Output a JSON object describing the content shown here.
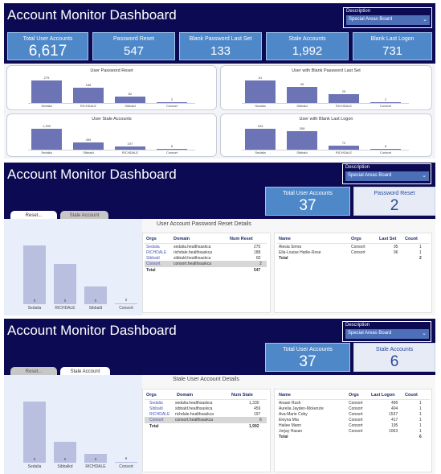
{
  "app_title": "Account Monitor Dashboard",
  "description_filter": {
    "label": "Description",
    "selected": "Special Areas Board",
    "chevron": "chevron-down-icon"
  },
  "overview": {
    "kpis": [
      {
        "label": "Total User Accounts",
        "value": "6,617"
      },
      {
        "label": "Password Reset",
        "value": "547"
      },
      {
        "label": "Blank Password Last Set",
        "value": "133"
      },
      {
        "label": "Stale Accounts",
        "value": "1,992"
      },
      {
        "label": "Blank Last Logon",
        "value": "731"
      }
    ],
    "charts": [
      {
        "title": "User Password Reset",
        "categories": [
          "Sedalia",
          "RICHDALE",
          "Sibbald",
          "Consort"
        ],
        "labels": [
          "275",
          "188",
          "82",
          "2"
        ],
        "values": [
          275,
          188,
          82,
          2
        ],
        "max": 300
      },
      {
        "title": "User with Blank Password Last Set",
        "categories": [
          "Sedalia",
          "Sibbald",
          "RICHDALE",
          "Consort"
        ],
        "labels": [
          "61",
          "45",
          "25",
          "2"
        ],
        "values": [
          61,
          45,
          25,
          2
        ],
        "max": 66
      },
      {
        "title": "User Stale Accounts",
        "categories": [
          "Sedalia",
          "Sibbald",
          "RICHDALE",
          "Consort"
        ],
        "labels": [
          "1,330",
          "459",
          "197",
          "6"
        ],
        "values": [
          1330,
          459,
          197,
          6
        ],
        "max": 1450
      },
      {
        "title": "User with Blank Last Logon",
        "categories": [
          "Sedalia",
          "Sibbald",
          "RICHDALE",
          "Consort"
        ],
        "labels": [
          "343",
          "308",
          "72",
          "8"
        ],
        "values": [
          343,
          308,
          72,
          8
        ],
        "max": 370
      }
    ]
  },
  "reset_view": {
    "kpi_total": {
      "label": "Total User Accounts",
      "value": "37"
    },
    "kpi_second": {
      "label": "Password Reset",
      "value": "2"
    },
    "tabs": [
      "Reset...",
      "Stale Account"
    ],
    "details_title": "User Account Password Reset Details",
    "bars": {
      "categories": [
        "Sedalia",
        "RICHDALE",
        "Sibbald",
        "Consort"
      ],
      "labels": [
        "0",
        "0",
        "0",
        "2"
      ],
      "values": [
        275,
        188,
        82,
        2
      ],
      "max": 300
    },
    "org_table": {
      "headers": [
        "Orgs",
        "Domain",
        "Num Reset"
      ],
      "rows": [
        [
          "Sedalia",
          "sedalia.healthsaskca",
          "275"
        ],
        [
          "RICHDALE",
          "richdale.healthsaskca",
          "188"
        ],
        [
          "Sibbald",
          "sibbald.healthsaskca",
          "82"
        ],
        [
          "Consort",
          "consort.healthsaskca",
          "2"
        ]
      ],
      "total_label": "Total",
      "total_value": "547"
    },
    "user_table": {
      "headers": [
        "Name",
        "Orgs",
        "Last Set",
        "Count"
      ],
      "rows": [
        [
          "Alesia Simra",
          "Consort",
          "95",
          "1"
        ],
        [
          "Ella-Louise Harlie-Rose",
          "Consort",
          "96",
          "1"
        ]
      ],
      "total_label": "Total",
      "total_value": "2"
    }
  },
  "stale_view": {
    "kpi_total": {
      "label": "Total User Accounts",
      "value": "37"
    },
    "kpi_second": {
      "label": "Stale Accounts",
      "value": "6"
    },
    "tabs": [
      "Reset...",
      "Stale Account"
    ],
    "details_title": "Stale User Account Details",
    "bars": {
      "categories": [
        "Sedalia",
        "Sibbalkd",
        "RICHDALE",
        "Consort"
      ],
      "labels": [
        "0",
        "0",
        "0",
        "6"
      ],
      "values": [
        1330,
        459,
        197,
        6
      ],
      "max": 1450
    },
    "org_table": {
      "headers": [
        "Orgs",
        "Domain",
        "Num Stale"
      ],
      "rows": [
        [
          "Sedalia",
          "sedalia.healthsaskca",
          "1,330"
        ],
        [
          "Sibbald",
          "sibbald.healthsaskca",
          "459"
        ],
        [
          "RICHDALE",
          "richdale.healthsaskca",
          "197"
        ],
        [
          "Consort",
          "consort.healthsaskca",
          "6"
        ]
      ],
      "total_label": "Total",
      "total_value": "1,992"
    },
    "user_table": {
      "headers": [
        "Name",
        "Orgs",
        "Last Logon",
        "Count"
      ],
      "rows": [
        [
          "Anaan Rush",
          "Consort",
          "496",
          "1"
        ],
        [
          "Aurelia Jayden-Mckenzie",
          "Consort",
          "404",
          "1"
        ],
        [
          "Ava-Marie Coby",
          "Consort",
          "1537",
          "1"
        ],
        [
          "Eleyna Mia",
          "Consort",
          "417",
          "1"
        ],
        [
          "Hailee Mann",
          "Consort",
          "195",
          "1"
        ],
        [
          "Jorjay Hasan",
          "Consort",
          "1063",
          "1"
        ]
      ],
      "total_label": "Total",
      "total_value": "6"
    }
  }
}
